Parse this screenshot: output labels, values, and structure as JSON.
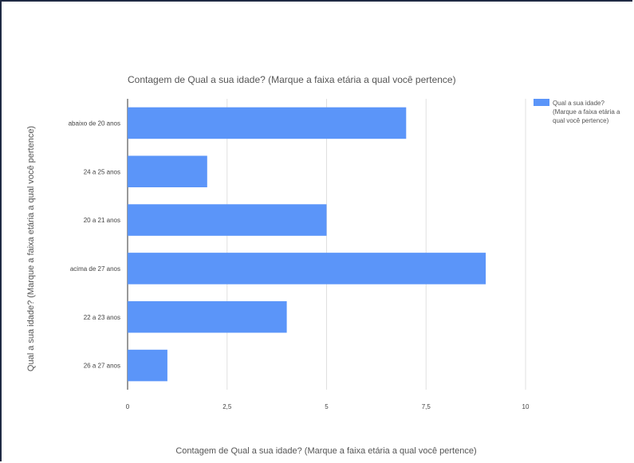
{
  "chart_data": {
    "type": "bar",
    "orientation": "horizontal",
    "title": "Contagem de Qual a sua idade? (Marque a faixa etária a qual você pertence)",
    "xlabel": "Contagem de Qual a sua idade? (Marque a faixa etária a qual você pertence)",
    "ylabel": "Qual a sua idade? (Marque a faixa etária a qual você pertence)",
    "categories": [
      "abaixo de 20 anos",
      "24 a 25 anos",
      "20 a 21 anos",
      "acima de 27 anos",
      "22 a 23 anos",
      "26 a 27 anos"
    ],
    "series": [
      {
        "name": "Qual a sua idade? (Marque a faixa etária a qual você pertence)",
        "values": [
          7,
          2,
          5,
          9,
          4,
          1
        ],
        "color": "#5b95f9"
      }
    ],
    "xlim": [
      0,
      10
    ],
    "xticks": [
      "0",
      "2,5",
      "5",
      "7,5",
      "10"
    ],
    "grid": true,
    "legend": "right",
    "legend_lines": [
      "Qual a sua idade?",
      "(Marque a faixa etária a",
      "qual você pertence)"
    ]
  }
}
